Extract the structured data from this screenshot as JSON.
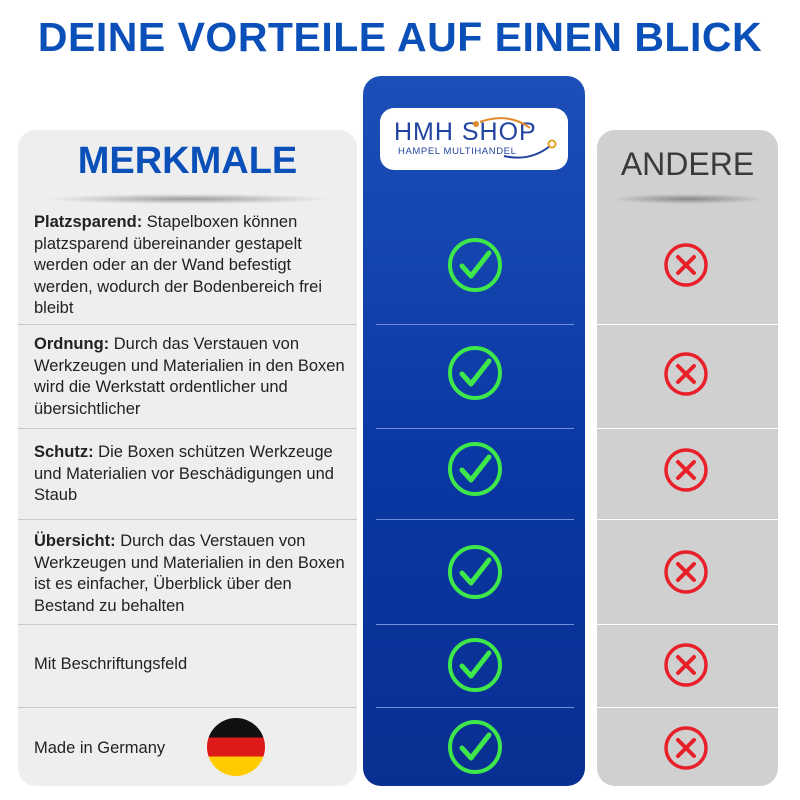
{
  "headline": "DEINE VORTEILE AUF EINEN BLICK",
  "columns": {
    "left_title": "MERKMALE",
    "middle_logo": {
      "brand": "HMH SHOP",
      "tagline": "HAMPEL MULTIHANDEL"
    },
    "right_title": "ANDERE"
  },
  "rows": [
    {
      "bold": "Platzsparend:",
      "text": " Stapelboxen können platzsparend übereinander gestapelt werden oder an der Wand befestigt werden, wodurch der Bodenbereich frei bleibt",
      "hmh_icon": "check-icon",
      "andere_icon": "cross-icon"
    },
    {
      "bold": "Ordnung:",
      "text": " Durch das Verstauen von Werkzeugen und Materialien in den Boxen wird die Werkstatt ordentlicher und übersichtlicher",
      "hmh_icon": "check-icon",
      "andere_icon": "cross-icon"
    },
    {
      "bold": "Schutz:",
      "text": " Die Boxen schützen Werkzeuge und Materialien vor Beschädigungen und Staub",
      "hmh_icon": "check-icon",
      "andere_icon": "cross-icon"
    },
    {
      "bold": "Übersicht:",
      "text": " Durch das Verstauen von Werkzeugen und Materialien in den Boxen ist es einfacher, Überblick über den Bestand zu behalten",
      "hmh_icon": "check-icon",
      "andere_icon": "cross-icon"
    },
    {
      "bold": "",
      "text": "Mit Beschriftungsfeld",
      "hmh_icon": "check-icon",
      "andere_icon": "cross-icon"
    },
    {
      "bold": "",
      "text": "Made in Germany",
      "hmh_icon": "check-icon",
      "andere_icon": "cross-icon",
      "extra_icon": "germany-flag-icon"
    }
  ],
  "colors": {
    "headline_blue": "#0b4fb8",
    "hmh_column_blue": "#0a37a3",
    "check_green": "#3ee84a",
    "cross_red": "#e8202a",
    "left_column_bg": "#eeeeee",
    "right_column_bg": "#d0d0d0"
  }
}
